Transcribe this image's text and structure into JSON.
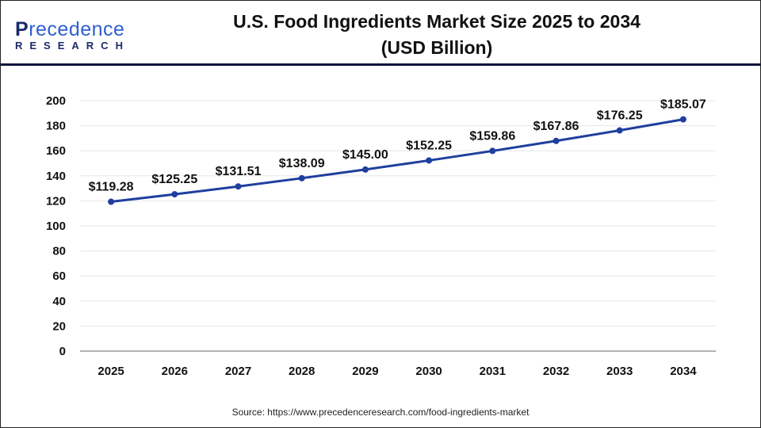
{
  "logo": {
    "line1_a": "P",
    "line1_b": "recedence",
    "line2": "RESEARCH"
  },
  "source": "Source: https://www.precedenceresearch.com/food-ingredients-market",
  "chart_data": {
    "type": "line",
    "title": "U.S. Food Ingredients Market Size 2025 to 2034",
    "subtitle": "(USD Billion)",
    "categories": [
      "2025",
      "2026",
      "2027",
      "2028",
      "2029",
      "2030",
      "2031",
      "2032",
      "2033",
      "2034"
    ],
    "values": [
      119.28,
      125.25,
      131.51,
      138.09,
      145.0,
      152.25,
      159.86,
      167.86,
      176.25,
      185.07
    ],
    "data_labels": [
      "$119.28",
      "$125.25",
      "$131.51",
      "$138.09",
      "$145.00",
      "$152.25",
      "$159.86",
      "$167.86",
      "$176.25",
      "$185.07"
    ],
    "yticks": [
      "0",
      "20",
      "40",
      "60",
      "80",
      "100",
      "120",
      "140",
      "160",
      "180",
      "200"
    ],
    "ylim": [
      0,
      200
    ],
    "grid": true,
    "line_color": "#1f3f9e"
  }
}
